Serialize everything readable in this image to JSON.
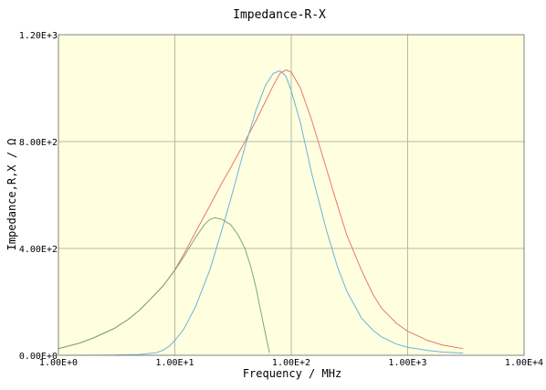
{
  "chart_data": {
    "type": "line",
    "title": "Impedance-R-X",
    "xlabel": "Frequency / MHz",
    "ylabel": "Impedance,R,X / Ω",
    "x_scale": "log",
    "xlim": [
      1,
      10000
    ],
    "ylim": [
      0,
      1200
    ],
    "grid": true,
    "x_ticks": [
      {
        "value": 1,
        "label": "1.00E+0"
      },
      {
        "value": 10,
        "label": "1.00E+1"
      },
      {
        "value": 100,
        "label": "1.00E+2"
      },
      {
        "value": 1000,
        "label": "1.00E+3"
      },
      {
        "value": 10000,
        "label": "1.00E+4"
      }
    ],
    "y_ticks": [
      {
        "value": 0,
        "label": "0.00E+0"
      },
      {
        "value": 400,
        "label": "4.00E+2"
      },
      {
        "value": 800,
        "label": "8.00E+2"
      },
      {
        "value": 1200,
        "label": "1.20E+3"
      }
    ],
    "colors": {
      "plot_bg": "#ffffe0",
      "grid": "#b8b8a0",
      "axis": "#808080"
    },
    "series": [
      {
        "color": "#e8776e",
        "points": [
          [
            1,
            25
          ],
          [
            1.5,
            45
          ],
          [
            2,
            65
          ],
          [
            3,
            100
          ],
          [
            4,
            135
          ],
          [
            5,
            170
          ],
          [
            6,
            205
          ],
          [
            7,
            235
          ],
          [
            8,
            262
          ],
          [
            10,
            320
          ],
          [
            12,
            380
          ],
          [
            15,
            460
          ],
          [
            20,
            560
          ],
          [
            25,
            640
          ],
          [
            30,
            700
          ],
          [
            40,
            800
          ],
          [
            50,
            880
          ],
          [
            60,
            950
          ],
          [
            70,
            1010
          ],
          [
            80,
            1055
          ],
          [
            90,
            1068
          ],
          [
            100,
            1060
          ],
          [
            120,
            1000
          ],
          [
            150,
            880
          ],
          [
            200,
            700
          ],
          [
            250,
            560
          ],
          [
            300,
            450
          ],
          [
            400,
            320
          ],
          [
            500,
            230
          ],
          [
            600,
            175
          ],
          [
            800,
            120
          ],
          [
            1000,
            90
          ],
          [
            1500,
            55
          ],
          [
            2000,
            38
          ],
          [
            3000,
            25
          ]
        ]
      },
      {
        "color": "#6ab3dc",
        "points": [
          [
            1,
            0
          ],
          [
            3,
            1
          ],
          [
            5,
            3
          ],
          [
            7,
            10
          ],
          [
            8,
            20
          ],
          [
            9,
            35
          ],
          [
            10,
            55
          ],
          [
            12,
            100
          ],
          [
            15,
            180
          ],
          [
            20,
            320
          ],
          [
            25,
            460
          ],
          [
            30,
            580
          ],
          [
            40,
            780
          ],
          [
            50,
            920
          ],
          [
            60,
            1010
          ],
          [
            70,
            1055
          ],
          [
            80,
            1065
          ],
          [
            90,
            1045
          ],
          [
            100,
            990
          ],
          [
            120,
            870
          ],
          [
            150,
            680
          ],
          [
            200,
            470
          ],
          [
            250,
            330
          ],
          [
            300,
            240
          ],
          [
            400,
            140
          ],
          [
            500,
            95
          ],
          [
            600,
            68
          ],
          [
            800,
            42
          ],
          [
            1000,
            30
          ],
          [
            1500,
            18
          ],
          [
            2000,
            12
          ],
          [
            3000,
            8
          ]
        ]
      },
      {
        "color": "#7aa87a",
        "points": [
          [
            1,
            25
          ],
          [
            1.5,
            45
          ],
          [
            2,
            65
          ],
          [
            3,
            100
          ],
          [
            4,
            135
          ],
          [
            5,
            170
          ],
          [
            6,
            205
          ],
          [
            7,
            235
          ],
          [
            8,
            262
          ],
          [
            10,
            318
          ],
          [
            12,
            370
          ],
          [
            15,
            440
          ],
          [
            18,
            490
          ],
          [
            20,
            508
          ],
          [
            22,
            515
          ],
          [
            25,
            510
          ],
          [
            30,
            490
          ],
          [
            35,
            450
          ],
          [
            40,
            400
          ],
          [
            45,
            330
          ],
          [
            50,
            250
          ],
          [
            55,
            160
          ],
          [
            60,
            80
          ],
          [
            65,
            10
          ]
        ]
      }
    ]
  }
}
